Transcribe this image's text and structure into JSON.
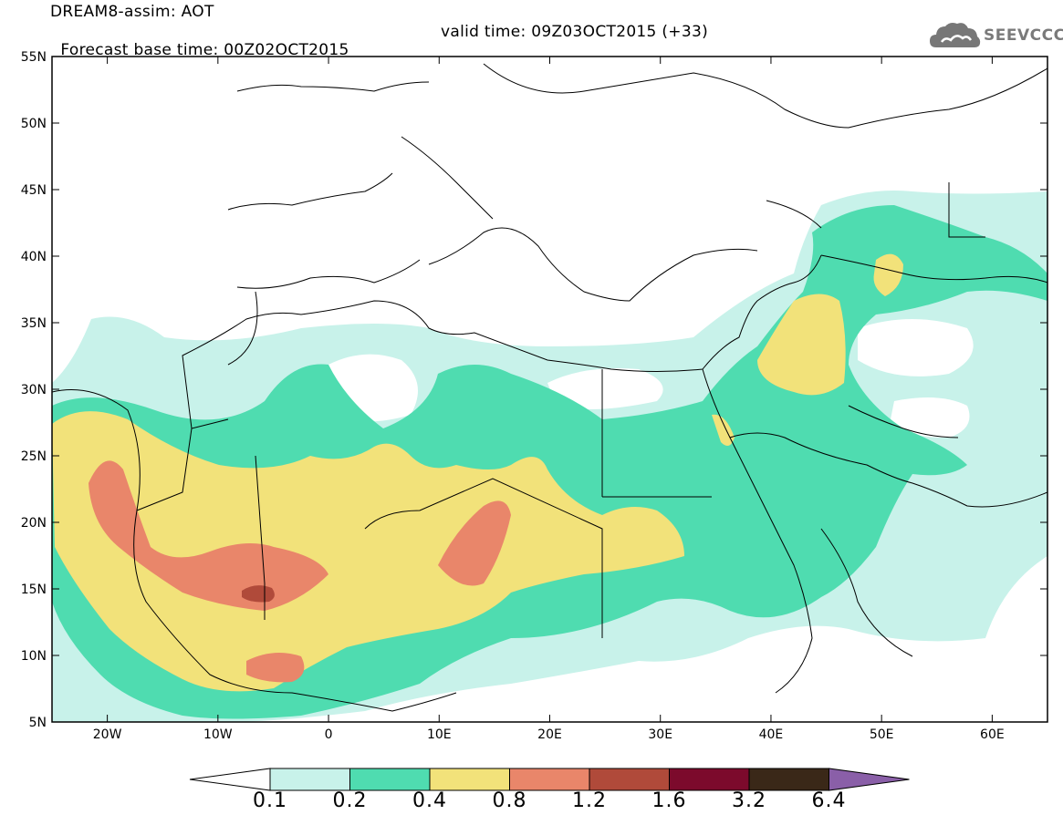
{
  "header": {
    "title": "DREAM8-assim: AOT",
    "forecast_base": "Forecast base time: 00Z02OCT2015",
    "valid_time": "valid time: 09Z03OCT2015 (+33)"
  },
  "logo": {
    "text": "SEEVCCC",
    "icon": "cloud-icon"
  },
  "map": {
    "projection": "lat-lon",
    "lon_range": [
      -25,
      65
    ],
    "lat_range": [
      5,
      55
    ],
    "lat_labels": [
      "55N",
      "50N",
      "45N",
      "40N",
      "35N",
      "30N",
      "25N",
      "20N",
      "15N",
      "10N",
      "5N"
    ],
    "lon_labels": [
      "20W",
      "10W",
      "0",
      "10E",
      "20E",
      "30E",
      "40E",
      "50E",
      "60E"
    ],
    "colors": {
      "c01": "#c8f2ea",
      "c02": "#4fdcb0",
      "c04": "#f2e27a",
      "c08": "#e9866a",
      "c12": "#b04a3a",
      "c16": "#7c0a2c",
      "c32": "#3a2818",
      "c64": "#8a5fa8"
    }
  },
  "colorbar": {
    "labels": [
      "0.1",
      "0.2",
      "0.4",
      "0.8",
      "1.2",
      "1.6",
      "3.2",
      "6.4"
    ],
    "colors": [
      "#ffffff",
      "#c8f2ea",
      "#4fdcb0",
      "#f2e27a",
      "#e9866a",
      "#b04a3a",
      "#7c0a2c",
      "#3a2818",
      "#8a5fa8"
    ]
  }
}
